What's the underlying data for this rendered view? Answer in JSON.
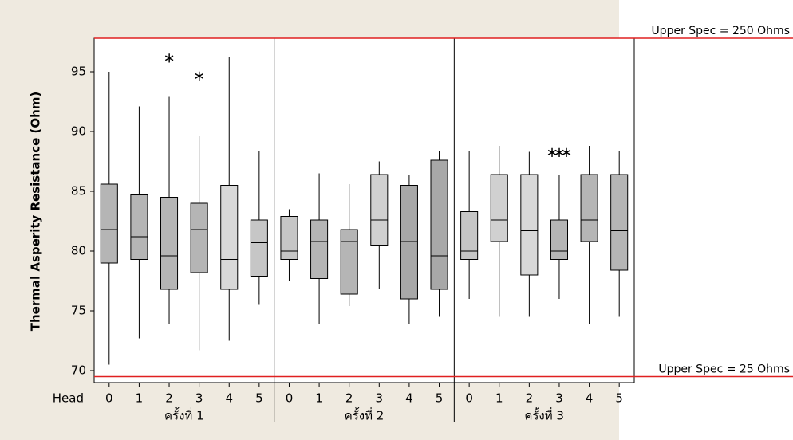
{
  "chart_data": {
    "type": "box",
    "y_label": "Thermal Asperity Resistance (Ohm)",
    "x_label": "Head",
    "ylim": [
      69,
      97.8
    ],
    "yticks": [
      70,
      75,
      80,
      85,
      90,
      95
    ],
    "reference_lines": [
      {
        "value": 97.8,
        "label": "Upper Spec = 250 Ohms",
        "color": "#e02020"
      },
      {
        "value": 69.5,
        "label": "Upper Spec = 25 Ohms",
        "color": "#e02020"
      }
    ],
    "groups": [
      {
        "label": "ครั้งที่ 1",
        "boxes": [
          {
            "category": "0",
            "whisker_low": 70.5,
            "q1": 79,
            "median": 81.8,
            "q3": 85.6,
            "whisker_high": 95,
            "outliers": [],
            "color": "#b5b5b5"
          },
          {
            "category": "1",
            "whisker_low": 72.7,
            "q1": 79.3,
            "median": 81.2,
            "q3": 84.7,
            "whisker_high": 92.1,
            "outliers": [],
            "color": "#b5b5b5"
          },
          {
            "category": "2",
            "whisker_low": 73.9,
            "q1": 76.8,
            "median": 79.6,
            "q3": 84.5,
            "whisker_high": 92.9,
            "outliers": [
              96.3
            ],
            "color": "#b5b5b5"
          },
          {
            "category": "3",
            "whisker_low": 71.7,
            "q1": 78.2,
            "median": 81.8,
            "q3": 84,
            "whisker_high": 89.6,
            "outliers": [
              94.8
            ],
            "color": "#b5b5b5"
          },
          {
            "category": "4",
            "whisker_low": 72.5,
            "q1": 76.8,
            "median": 79.3,
            "q3": 85.5,
            "whisker_high": 96.2,
            "outliers": [],
            "color": "#d8d8d8"
          },
          {
            "category": "5",
            "whisker_low": 75.5,
            "q1": 77.9,
            "median": 80.7,
            "q3": 82.6,
            "whisker_high": 88.4,
            "outliers": [],
            "color": "#c6c6c6"
          }
        ]
      },
      {
        "label": "ครั้งที่ 2",
        "boxes": [
          {
            "category": "0",
            "whisker_low": 77.5,
            "q1": 79.3,
            "median": 80,
            "q3": 82.9,
            "whisker_high": 83.5,
            "outliers": [],
            "color": "#c6c6c6"
          },
          {
            "category": "1",
            "whisker_low": 73.9,
            "q1": 77.7,
            "median": 80.8,
            "q3": 82.6,
            "whisker_high": 86.5,
            "outliers": [],
            "color": "#b5b5b5"
          },
          {
            "category": "2",
            "whisker_low": 75.4,
            "q1": 76.4,
            "median": 80.8,
            "q3": 81.8,
            "whisker_high": 85.6,
            "outliers": [],
            "color": "#b5b5b5"
          },
          {
            "category": "3",
            "whisker_low": 76.8,
            "q1": 80.5,
            "median": 82.6,
            "q3": 86.4,
            "whisker_high": 87.5,
            "outliers": [],
            "color": "#d0d0d0"
          },
          {
            "category": "4",
            "whisker_low": 73.9,
            "q1": 76,
            "median": 80.8,
            "q3": 85.5,
            "whisker_high": 86.4,
            "outliers": [],
            "color": "#a8a8a8"
          },
          {
            "category": "5",
            "whisker_low": 74.5,
            "q1": 76.8,
            "median": 79.6,
            "q3": 87.6,
            "whisker_high": 88.4,
            "outliers": [],
            "color": "#a8a8a8"
          }
        ]
      },
      {
        "label": "ครั้งที่ 3",
        "boxes": [
          {
            "category": "0",
            "whisker_low": 76,
            "q1": 79.3,
            "median": 80,
            "q3": 83.3,
            "whisker_high": 88.4,
            "outliers": [],
            "color": "#c6c6c6"
          },
          {
            "category": "1",
            "whisker_low": 74.5,
            "q1": 80.8,
            "median": 82.6,
            "q3": 86.4,
            "whisker_high": 88.8,
            "outliers": [],
            "color": "#d0d0d0"
          },
          {
            "category": "2",
            "whisker_low": 74.5,
            "q1": 78,
            "median": 81.7,
            "q3": 86.4,
            "whisker_high": 88.3,
            "outliers": [],
            "color": "#d8d8d8"
          },
          {
            "category": "3",
            "whisker_low": 76,
            "q1": 79.3,
            "median": 80,
            "q3": 82.6,
            "whisker_high": 86.4,
            "outliers": [
              88.4,
              88.4,
              88.4
            ],
            "color": "#b5b5b5"
          },
          {
            "category": "4",
            "whisker_low": 73.9,
            "q1": 80.8,
            "median": 82.6,
            "q3": 86.4,
            "whisker_high": 88.8,
            "outliers": [],
            "color": "#b5b5b5"
          },
          {
            "category": "5",
            "whisker_low": 74.5,
            "q1": 78.4,
            "median": 81.7,
            "q3": 86.4,
            "whisker_high": 88.4,
            "outliers": [],
            "color": "#b5b5b5"
          }
        ]
      }
    ]
  }
}
